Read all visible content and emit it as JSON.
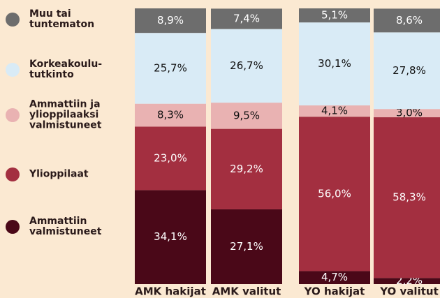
{
  "chart_data": {
    "type": "stacked_bar",
    "categories": [
      "AMK hakijat",
      "AMK valitut",
      "YO hakijat",
      "YO valitut"
    ],
    "ylim": [
      0,
      100
    ],
    "series": [
      {
        "name": "Ammattiin\nvalmistuneet",
        "color": "#4a0818",
        "values": [
          34.1,
          27.1,
          4.7,
          2.2
        ],
        "value_labels": [
          "34,1%",
          "27,1%",
          "4,7%",
          "2,2%"
        ]
      },
      {
        "name": "Ylioppilaat",
        "color": "#a32f40",
        "values": [
          23.0,
          29.2,
          56.0,
          58.3
        ],
        "value_labels": [
          "23,0%",
          "29,2%",
          "56,0%",
          "58,3%"
        ]
      },
      {
        "name": "Ammattiin ja\nylioppilaaksi\nvalmistuneet",
        "color": "#e9b2b2",
        "values": [
          8.3,
          9.5,
          4.1,
          3.0
        ],
        "value_labels": [
          "8,3%",
          "9,5%",
          "4,1%",
          "3,0%"
        ]
      },
      {
        "name": "Korkeakoulu-\ntutkinto",
        "color": "#d9ebf6",
        "values": [
          25.7,
          26.7,
          30.1,
          27.8
        ],
        "value_labels": [
          "25,7%",
          "26,7%",
          "30,1%",
          "27,8%"
        ]
      },
      {
        "name": "Muu tai\ntuntematon",
        "color": "#6d6d6d",
        "values": [
          8.9,
          7.4,
          5.1,
          8.6
        ],
        "value_labels": [
          "8,9%",
          "7,4%",
          "5,1%",
          "8,6%"
        ]
      }
    ]
  }
}
